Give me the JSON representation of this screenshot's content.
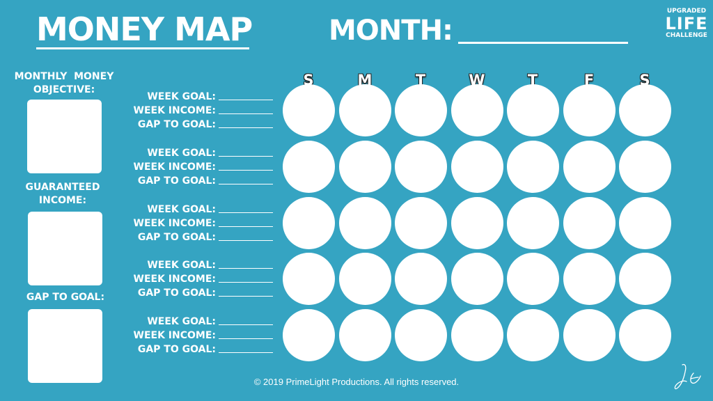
{
  "header": {
    "title": "MONEY MAP",
    "month_label": "MONTH:",
    "logo_line1": "UPGRADED",
    "logo_line2": "LIFE",
    "logo_line3": "CHALLENGE"
  },
  "sidebar": {
    "monthly_objective_label_1": "MONTHLY  MONEY",
    "monthly_objective_label_2": "OBJECTIVE:",
    "guaranteed_income_label_1": "GUARANTEED",
    "guaranteed_income_label_2": "INCOME:",
    "gap_to_goal_label": "GAP TO GOAL:"
  },
  "week_labels": {
    "goal": "WEEK GOAL:",
    "income": "WEEK INCOME:",
    "gap": "GAP TO GOAL:"
  },
  "days": [
    "S",
    "M",
    "T",
    "W",
    "T",
    "F",
    "S"
  ],
  "footer": {
    "copyright": "© 2019 PrimeLight Productions. All rights reserved."
  },
  "icons": {
    "signature": "signature-icon"
  },
  "colors": {
    "background": "#35a4c2",
    "foreground": "#ffffff"
  }
}
